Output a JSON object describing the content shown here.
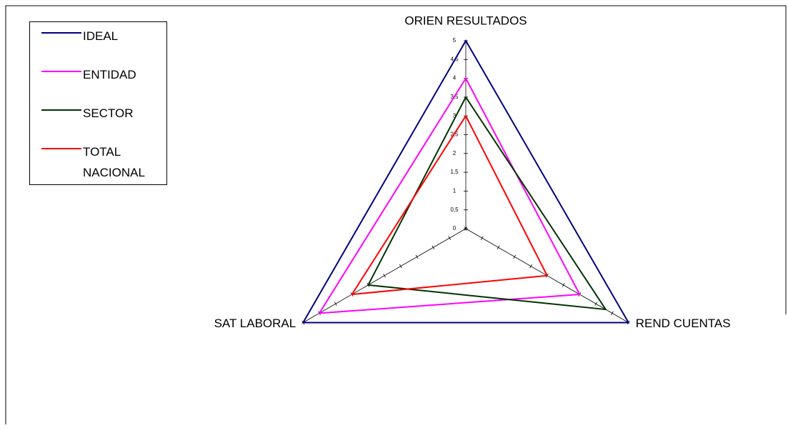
{
  "chart_data": {
    "type": "radar",
    "categories": [
      "ORIEN RESULTADOS",
      "REND CUENTAS",
      "SAT LABORAL"
    ],
    "series": [
      {
        "name": "IDEAL",
        "color": "#000080",
        "values": [
          5,
          5,
          5
        ]
      },
      {
        "name": "ENTIDAD",
        "color": "#ff00ff",
        "values": [
          4,
          3.5,
          4.5
        ]
      },
      {
        "name": "SECTOR",
        "color": "#003300",
        "values": [
          3.5,
          4.3,
          3
        ]
      },
      {
        "name": "TOTAL NACIONAL",
        "color": "#ff0000",
        "values": [
          3,
          2.5,
          3.5
        ]
      }
    ],
    "rlim": [
      0,
      5
    ],
    "rticks": [
      0,
      {
        "value": 0.5,
        "label": "0,5"
      },
      1,
      {
        "value": 1.5,
        "label": "1,5"
      },
      2,
      {
        "value": 2.5,
        "label": "2,5"
      },
      3,
      {
        "value": 3.5,
        "label": "3,5"
      },
      4,
      {
        "value": 4.5,
        "label": "4,5"
      },
      5
    ],
    "legend": "top-left"
  }
}
